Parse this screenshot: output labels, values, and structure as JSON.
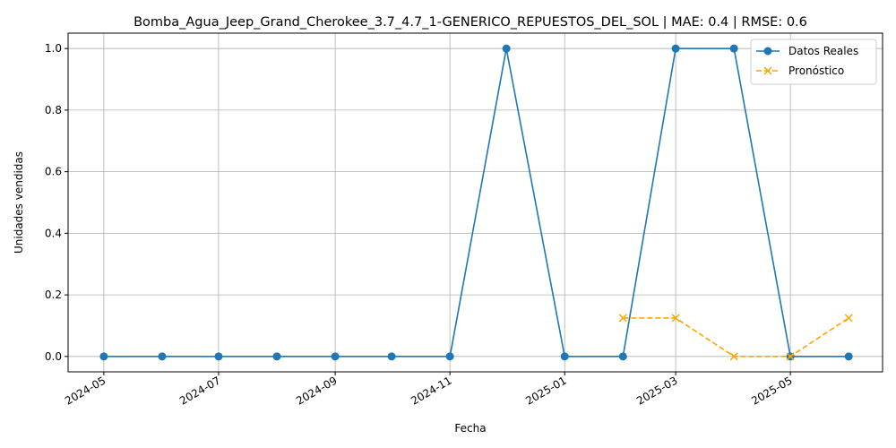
{
  "chart_data": {
    "type": "line",
    "title": "Bomba_Agua_Jeep_Grand_Cherokee_3.7_4.7_1-GENERICO_REPUESTOS_DEL_SOL | MAE: 0.4 | RMSE: 0.6",
    "xlabel": "Fecha",
    "ylabel": "Unidades vendidas",
    "x_ticks": [
      "2024-05",
      "2024-07",
      "2024-09",
      "2024-11",
      "2025-01",
      "2025-03",
      "2025-05"
    ],
    "y_ticks": [
      "0.0",
      "0.2",
      "0.4",
      "0.6",
      "0.8",
      "1.0"
    ],
    "xlim": [
      "2024-04-12",
      "2025-06-19"
    ],
    "ylim": [
      -0.05,
      1.05
    ],
    "grid": true,
    "legend_position": "top-right",
    "series": [
      {
        "name": "Datos Reales",
        "color": "#1f77b4",
        "style": "solid",
        "marker": "circle",
        "x": [
          "2024-05-01",
          "2024-06-01",
          "2024-07-01",
          "2024-08-01",
          "2024-09-01",
          "2024-10-01",
          "2024-11-01",
          "2024-12-01",
          "2025-01-01",
          "2025-02-01",
          "2025-03-01",
          "2025-04-01",
          "2025-05-01",
          "2025-06-01"
        ],
        "values": [
          0,
          0,
          0,
          0,
          0,
          0,
          0,
          1,
          0,
          0,
          1,
          1,
          0,
          0
        ]
      },
      {
        "name": "Pronóstico",
        "color": "#ffa500",
        "style": "dashed",
        "marker": "x",
        "x": [
          "2025-02-01",
          "2025-03-01",
          "2025-04-01",
          "2025-05-01",
          "2025-06-01"
        ],
        "values": [
          0.125,
          0.125,
          0,
          0,
          0.125
        ]
      }
    ]
  }
}
